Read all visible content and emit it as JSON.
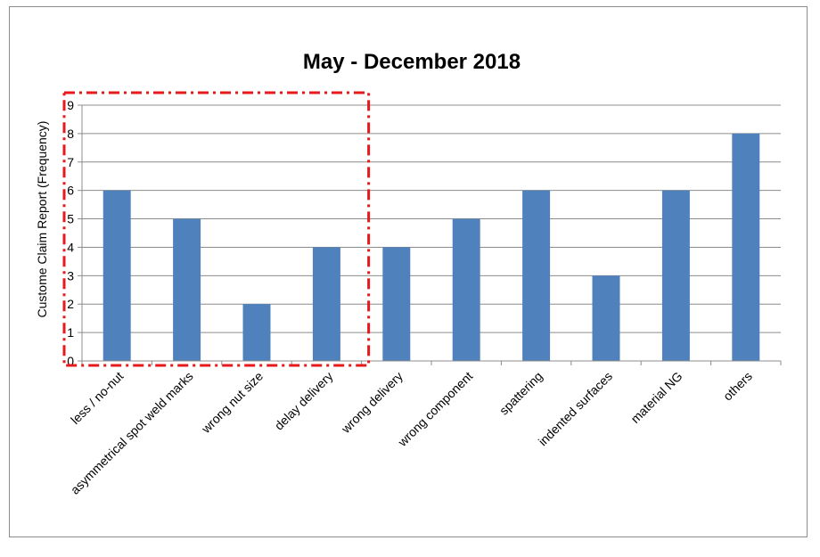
{
  "chart_data": {
    "type": "bar",
    "title": "May - December 2018",
    "xlabel": "",
    "ylabel": "Custome Claim Report (Frequency)",
    "ylim": [
      0,
      9
    ],
    "yticks": [
      0,
      1,
      2,
      3,
      4,
      5,
      6,
      7,
      8,
      9
    ],
    "grid": true,
    "legend": "none",
    "categories": [
      "less / no-nut",
      "asymmetrical spot weld marks",
      "wrong nut size",
      "delay delivery",
      "wrong delivery",
      "wrong component",
      "spattering",
      "indented surfaces",
      "material NG",
      "others"
    ],
    "values": [
      6,
      5,
      2,
      4,
      4,
      5,
      6,
      3,
      6,
      8
    ],
    "bar_color": "#4f81bd",
    "highlight": {
      "categories": [
        "less / no-nut",
        "asymmetrical spot weld marks",
        "wrong nut size",
        "delay delivery"
      ],
      "style": "dash-dot",
      "color": "#e41a1c"
    }
  }
}
